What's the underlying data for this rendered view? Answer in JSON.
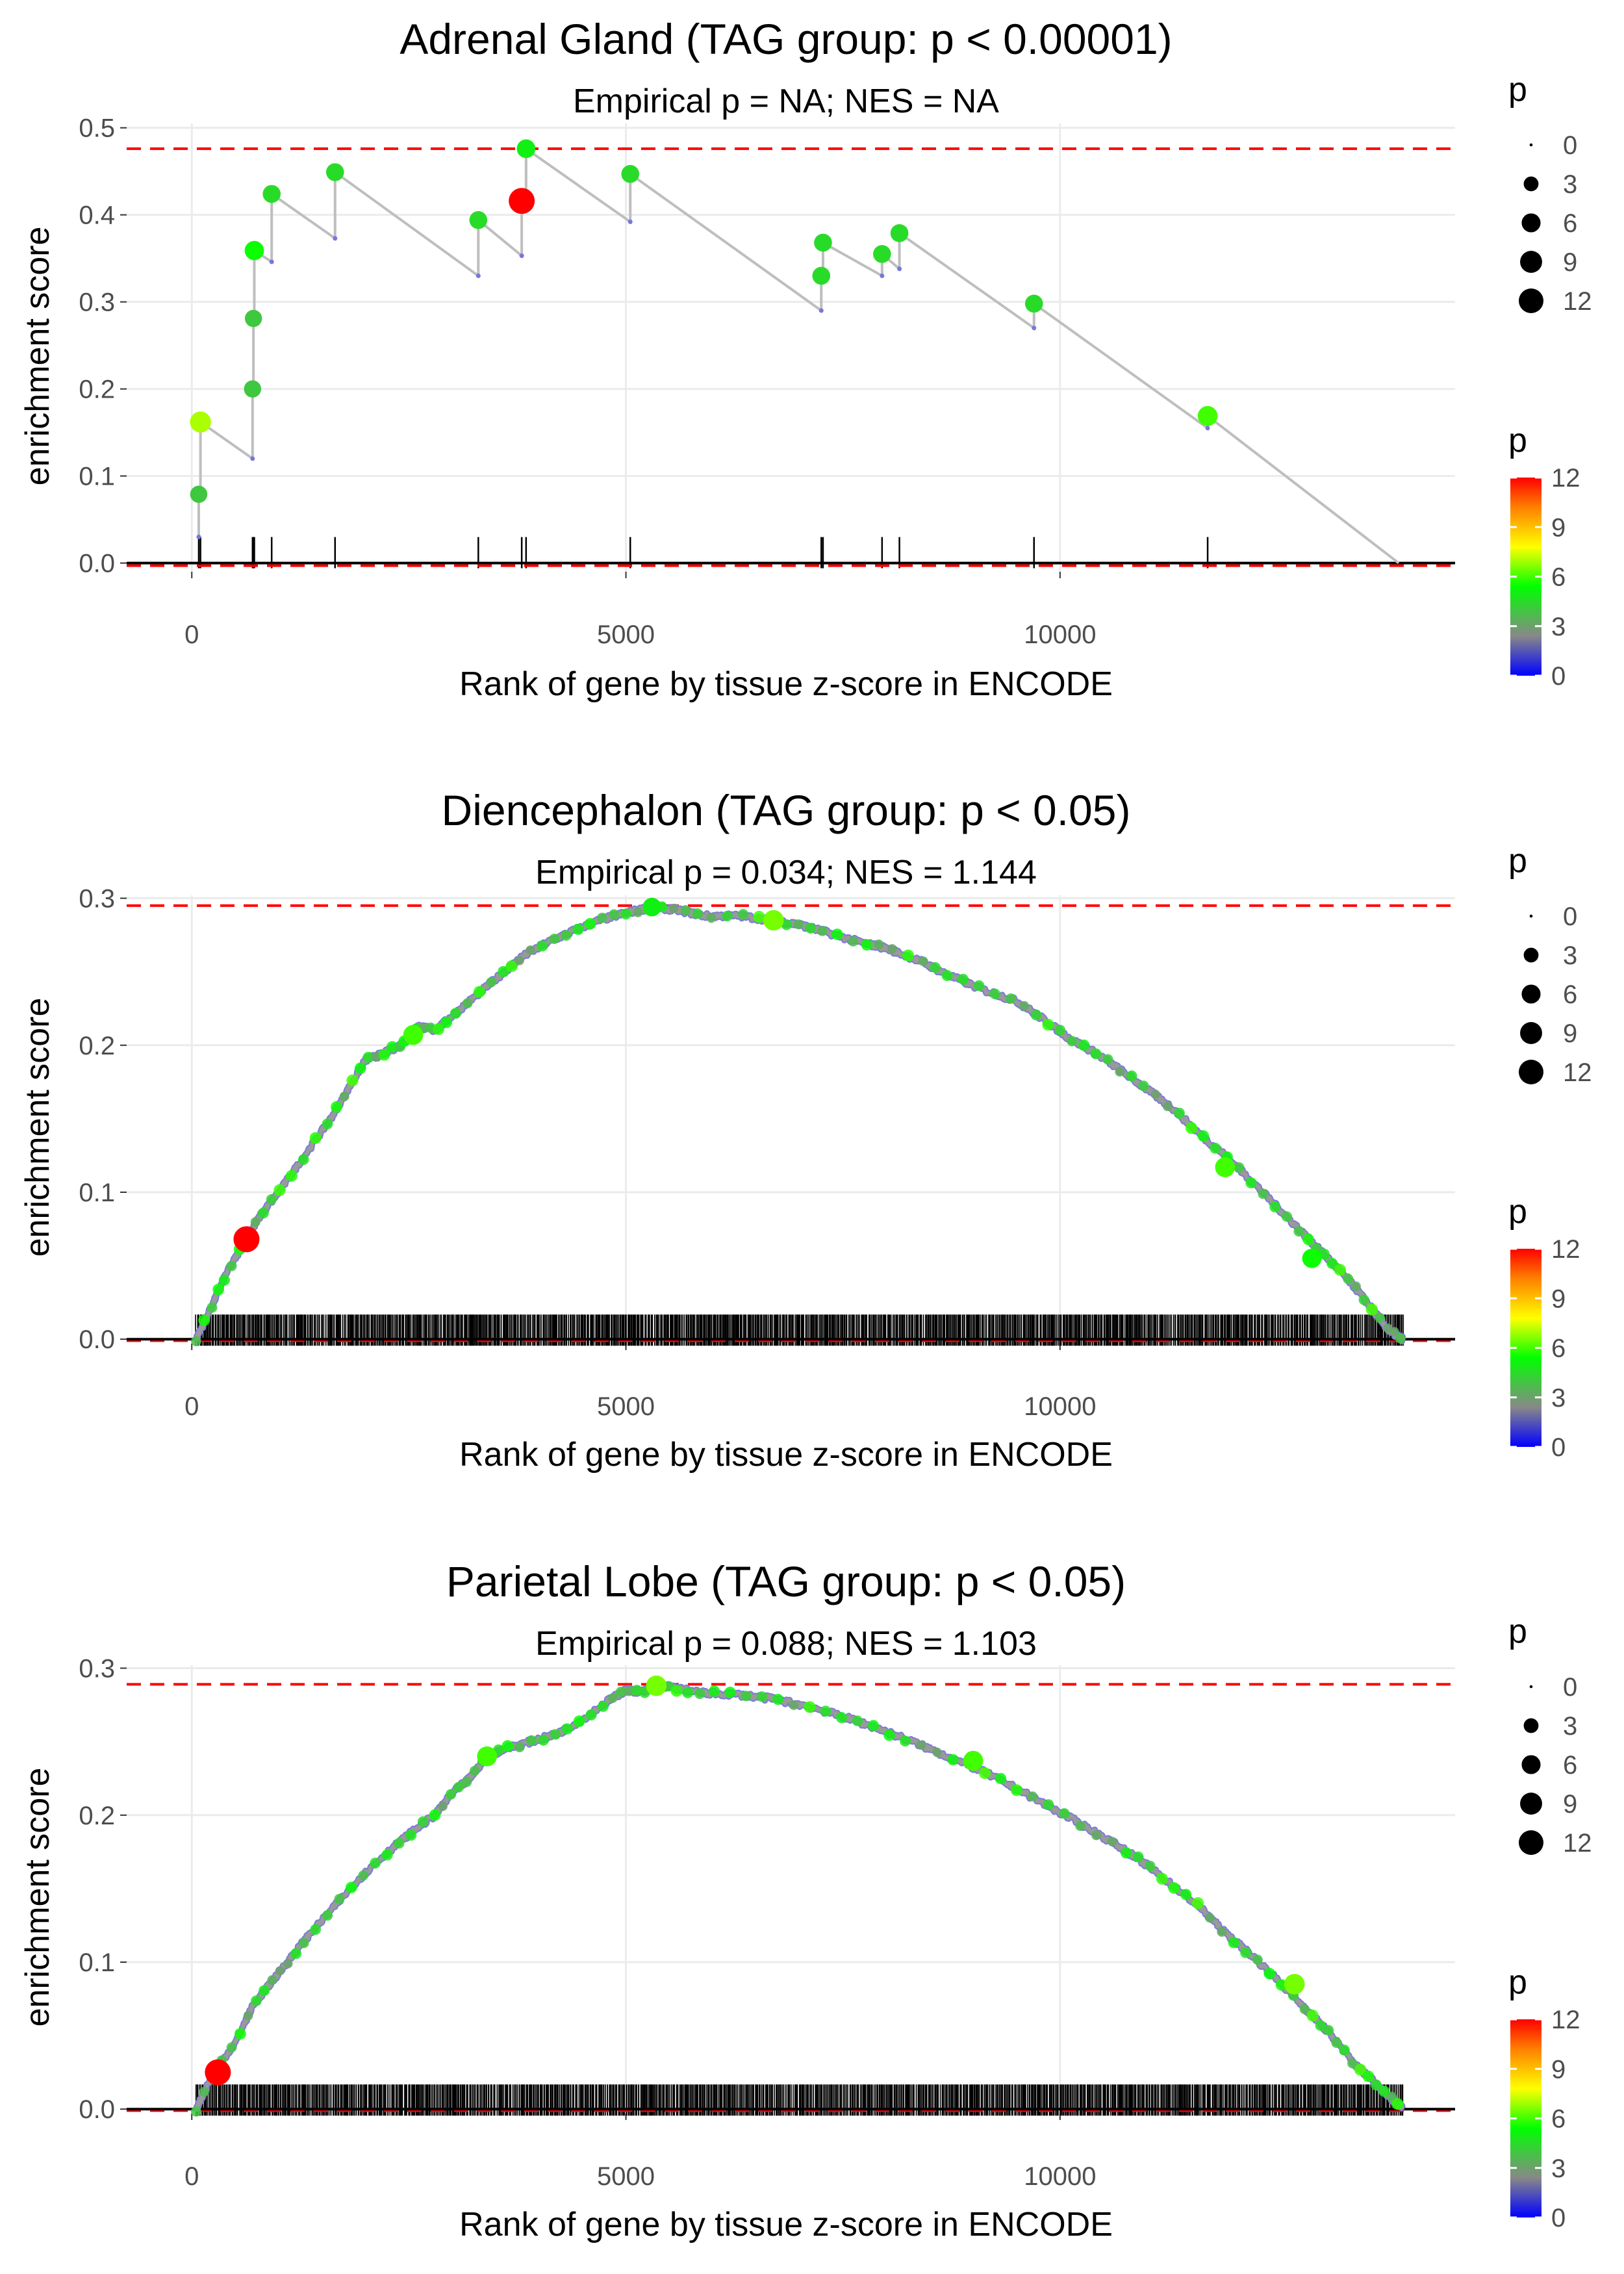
{
  "chart_data": [
    {
      "type": "line",
      "kind": "gsea-enrichment-step",
      "title": "Adrenal Gland (TAG group: p < 0.00001)",
      "subtitle": "Empirical p = NA; NES = NA",
      "xlabel": "Rank of gene by tissue z-score in ENCODE",
      "ylabel": "enrichment score",
      "xlim": [
        -750,
        14550
      ],
      "ylim": [
        -0.01,
        0.505
      ],
      "xticks": [
        0,
        5000,
        10000
      ],
      "yticks": [
        0.0,
        0.1,
        0.2,
        0.3,
        0.4,
        0.5
      ],
      "ytick_labels": [
        "0.0",
        "0.1",
        "0.2",
        "0.3",
        "0.4",
        "0.5"
      ],
      "max_es": 0.476,
      "min_es": -0.003,
      "hits": [
        {
          "rank": 80,
          "before": 0.03,
          "es": 0.079,
          "p": 4.0
        },
        {
          "rank": 100,
          "before": 0.079,
          "es": 0.162,
          "p": 7.0
        },
        {
          "rank": 700,
          "before": 0.12,
          "es": 0.2,
          "p": 4.0
        },
        {
          "rank": 710,
          "before": 0.2,
          "es": 0.281,
          "p": 4.0
        },
        {
          "rank": 720,
          "before": 0.281,
          "es": 0.359,
          "p": 5.5
        },
        {
          "rank": 920,
          "before": 0.346,
          "es": 0.424,
          "p": 4.5
        },
        {
          "rank": 1650,
          "before": 0.373,
          "es": 0.449,
          "p": 4.5
        },
        {
          "rank": 3300,
          "before": 0.33,
          "es": 0.394,
          "p": 4.5
        },
        {
          "rank": 3800,
          "before": 0.353,
          "es": 0.416,
          "p": 12.0
        },
        {
          "rank": 3850,
          "before": 0.416,
          "es": 0.476,
          "p": 5.0
        },
        {
          "rank": 5050,
          "before": 0.392,
          "es": 0.447,
          "p": 4.5
        },
        {
          "rank": 7250,
          "before": 0.29,
          "es": 0.33,
          "p": 4.5
        },
        {
          "rank": 7270,
          "before": 0.33,
          "es": 0.368,
          "p": 4.5
        },
        {
          "rank": 7950,
          "before": 0.33,
          "es": 0.355,
          "p": 4.5
        },
        {
          "rank": 8150,
          "before": 0.338,
          "es": 0.379,
          "p": 4.5
        },
        {
          "rank": 9700,
          "before": 0.27,
          "es": 0.298,
          "p": 4.5
        },
        {
          "rank": 11700,
          "before": 0.155,
          "es": 0.169,
          "p": 6.0
        }
      ],
      "end_rank": 13900
    },
    {
      "type": "line",
      "kind": "gsea-enrichment-curve",
      "title": "Diencephalon (TAG group: p < 0.05)",
      "subtitle": "Empirical p = 0.034; NES = 1.144",
      "xlabel": "Rank of gene by tissue z-score in ENCODE",
      "ylabel": "enrichment score",
      "xlim": [
        -750,
        14550
      ],
      "ylim": [
        -0.003,
        0.302
      ],
      "xticks": [
        0,
        5000,
        10000
      ],
      "yticks": [
        0.0,
        0.1,
        0.2,
        0.3
      ],
      "ytick_labels": [
        "0.0",
        "0.1",
        "0.2",
        "0.3"
      ],
      "max_es": 0.295,
      "min_es": -0.001,
      "curve": {
        "x": [
          50,
          250,
          400,
          600,
          800,
          1000,
          1300,
          1600,
          1800,
          2000,
          2200,
          2400,
          2500,
          2600,
          2800,
          3000,
          3300,
          3600,
          3800,
          4100,
          4400,
          4700,
          5000,
          5300,
          5600,
          5900,
          6300,
          6700,
          7000,
          7300,
          7700,
          8000,
          8400,
          8700,
          9100,
          9500,
          9800,
          10100,
          10400,
          10700,
          11000,
          11300,
          11600,
          11900,
          12200,
          12500,
          12800,
          13000,
          13200,
          13400,
          13600,
          13800,
          13950
        ],
        "y": [
          0.0,
          0.025,
          0.045,
          0.065,
          0.085,
          0.1,
          0.125,
          0.15,
          0.17,
          0.19,
          0.194,
          0.2,
          0.205,
          0.213,
          0.21,
          0.22,
          0.235,
          0.25,
          0.26,
          0.27,
          0.278,
          0.285,
          0.29,
          0.294,
          0.292,
          0.288,
          0.288,
          0.285,
          0.282,
          0.277,
          0.27,
          0.266,
          0.257,
          0.248,
          0.238,
          0.23,
          0.218,
          0.205,
          0.195,
          0.183,
          0.17,
          0.157,
          0.14,
          0.125,
          0.108,
          0.09,
          0.072,
          0.06,
          0.048,
          0.035,
          0.02,
          0.005,
          0.0
        ]
      },
      "highlights": [
        {
          "rank": 630,
          "es": 0.068,
          "p": 12.0
        },
        {
          "rank": 2550,
          "es": 0.207,
          "p": 6.0
        },
        {
          "rank": 5300,
          "es": 0.294,
          "p": 5.0
        },
        {
          "rank": 6700,
          "es": 0.285,
          "p": 6.5
        },
        {
          "rank": 11900,
          "es": 0.117,
          "p": 6.0
        },
        {
          "rank": 12900,
          "es": 0.055,
          "p": 5.5
        }
      ],
      "rug_start": 50,
      "rug_end": 13950,
      "rug_count": 1150
    },
    {
      "type": "line",
      "kind": "gsea-enrichment-curve",
      "title": "Parietal Lobe (TAG group: p < 0.05)",
      "subtitle": "Empirical p = 0.088; NES = 1.103",
      "xlabel": "Rank of gene by tissue z-score in ENCODE",
      "ylabel": "enrichment score",
      "xlim": [
        -750,
        14550
      ],
      "ylim": [
        -0.003,
        0.302
      ],
      "xticks": [
        0,
        5000,
        10000
      ],
      "yticks": [
        0.0,
        0.1,
        0.2,
        0.3
      ],
      "ytick_labels": [
        "0.0",
        "0.1",
        "0.2",
        "0.3"
      ],
      "max_es": 0.289,
      "min_es": -0.001,
      "curve": {
        "x": [
          50,
          250,
          500,
          700,
          900,
          1100,
          1300,
          1600,
          1900,
          2200,
          2500,
          2800,
          3000,
          3200,
          3400,
          3600,
          3900,
          4200,
          4500,
          4800,
          5000,
          5200,
          5400,
          5600,
          5900,
          6300,
          6700,
          7100,
          7500,
          7900,
          8300,
          8700,
          9100,
          9500,
          9900,
          10300,
          10700,
          11000,
          11300,
          11600,
          11900,
          12200,
          12500,
          12800,
          13000,
          13200,
          13400,
          13600,
          13800,
          13950
        ],
        "y": [
          0.0,
          0.025,
          0.045,
          0.07,
          0.085,
          0.1,
          0.115,
          0.135,
          0.155,
          0.172,
          0.187,
          0.2,
          0.215,
          0.225,
          0.24,
          0.245,
          0.25,
          0.255,
          0.265,
          0.278,
          0.285,
          0.284,
          0.288,
          0.286,
          0.283,
          0.282,
          0.279,
          0.274,
          0.267,
          0.259,
          0.25,
          0.24,
          0.23,
          0.218,
          0.205,
          0.192,
          0.178,
          0.166,
          0.152,
          0.138,
          0.12,
          0.105,
          0.088,
          0.07,
          0.058,
          0.045,
          0.03,
          0.02,
          0.008,
          0.0
        ]
      },
      "highlights": [
        {
          "rank": 300,
          "es": 0.025,
          "p": 12.0
        },
        {
          "rank": 3400,
          "es": 0.24,
          "p": 6.0
        },
        {
          "rank": 5350,
          "es": 0.288,
          "p": 6.5
        },
        {
          "rank": 9000,
          "es": 0.237,
          "p": 6.0
        },
        {
          "rank": 12700,
          "es": 0.085,
          "p": 6.5
        }
      ],
      "rug_start": 50,
      "rug_end": 13950,
      "rug_count": 1150
    }
  ],
  "legend": {
    "size_title": "p",
    "size_labels": [
      "0",
      "3",
      "6",
      "9",
      "12"
    ],
    "color_title": "p",
    "color_labels": [
      "12",
      "9",
      "6",
      "3",
      "0"
    ],
    "colors": {
      "line": "#bebebe",
      "rug": "#000000",
      "reference": "#ff0000",
      "grid": "#ebebeb",
      "scale_stops": [
        "#0000ff",
        "#888888",
        "#00ff00",
        "#ffff00",
        "#ff8000",
        "#ff0000"
      ]
    }
  }
}
